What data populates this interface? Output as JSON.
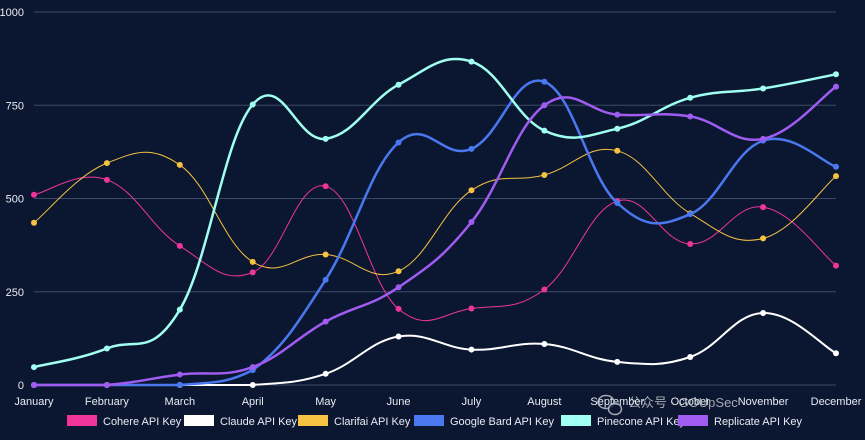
{
  "chart_data": {
    "type": "line",
    "title": "",
    "xlabel": "",
    "ylabel": "",
    "ylim": [
      0,
      1000
    ],
    "yticks": [
      0,
      250,
      500,
      750,
      1000
    ],
    "grid": true,
    "legend_position": "bottom",
    "categories": [
      "January",
      "February",
      "March",
      "April",
      "May",
      "June",
      "July",
      "August",
      "September",
      "October",
      "November",
      "December"
    ],
    "series": [
      {
        "name": "Cohere API Key",
        "color": "#f0359a",
        "width": 1,
        "values": [
          510,
          550,
          373,
          302,
          533,
          204,
          205,
          256,
          493,
          378,
          477,
          320
        ]
      },
      {
        "name": "Claude API Key",
        "color": "#ffffff",
        "width": 2,
        "values": [
          0,
          0,
          0,
          0,
          30,
          130,
          95,
          110,
          62,
          75,
          193,
          85
        ]
      },
      {
        "name": "Clarifai API Key",
        "color": "#f5c242",
        "width": 1,
        "values": [
          435,
          595,
          590,
          330,
          350,
          305,
          522,
          563,
          628,
          460,
          393,
          560
        ]
      },
      {
        "name": "Google Bard API Key",
        "color": "#4a78f0",
        "width": 2.5,
        "values": [
          0,
          0,
          0,
          40,
          282,
          650,
          633,
          813,
          488,
          458,
          655,
          585
        ]
      },
      {
        "name": "Pinecone API Key",
        "color": "#a0fff0",
        "width": 2.5,
        "values": [
          48,
          98,
          202,
          752,
          660,
          805,
          867,
          682,
          687,
          770,
          795,
          833
        ]
      },
      {
        "name": "Replicate API Key",
        "color": "#a05cf0",
        "width": 2.5,
        "values": [
          0,
          0,
          28,
          48,
          170,
          262,
          437,
          750,
          725,
          720,
          660,
          800
        ]
      }
    ]
  },
  "watermark": {
    "text": "公众号 · GOUpSec"
  }
}
